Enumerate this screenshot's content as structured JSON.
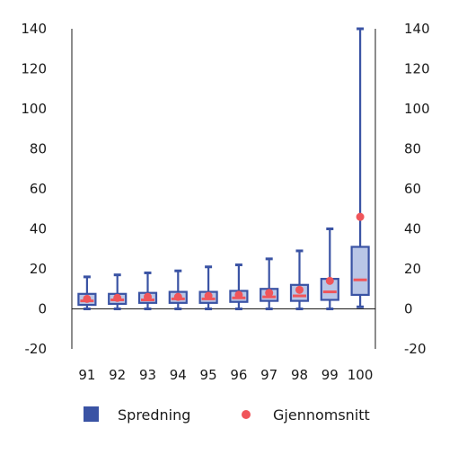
{
  "chart_data": {
    "type": "box",
    "categories": [
      "91",
      "92",
      "93",
      "94",
      "95",
      "96",
      "97",
      "98",
      "99",
      "100"
    ],
    "y_ticks": [
      "-20",
      "0",
      "20",
      "40",
      "60",
      "80",
      "100",
      "120",
      "140"
    ],
    "ylim": [
      -20,
      140
    ],
    "series": [
      {
        "name": "Spredning",
        "color": "#3a53a4",
        "fill": "#b9c6e6",
        "min": [
          0,
          0,
          0,
          0,
          0,
          0,
          0,
          0,
          0,
          1
        ],
        "q1": [
          2,
          2.5,
          3,
          3,
          3,
          3.5,
          4,
          4,
          4.5,
          7
        ],
        "median": [
          4,
          4.5,
          4.5,
          5,
          5,
          5.5,
          6,
          6.5,
          8.5,
          14.5
        ],
        "q3": [
          7.5,
          7.5,
          8,
          8.5,
          8.5,
          9,
          10,
          12,
          15,
          31
        ],
        "max": [
          16,
          17,
          18,
          19,
          21,
          22,
          25,
          29,
          40,
          140
        ]
      },
      {
        "name": "Gjennomsnitt",
        "color": "#f0555a",
        "values": [
          5,
          5.5,
          6,
          6,
          6.5,
          7,
          8,
          9.5,
          14,
          46
        ]
      }
    ],
    "legend": {
      "position": "bottom"
    },
    "grid": false
  }
}
